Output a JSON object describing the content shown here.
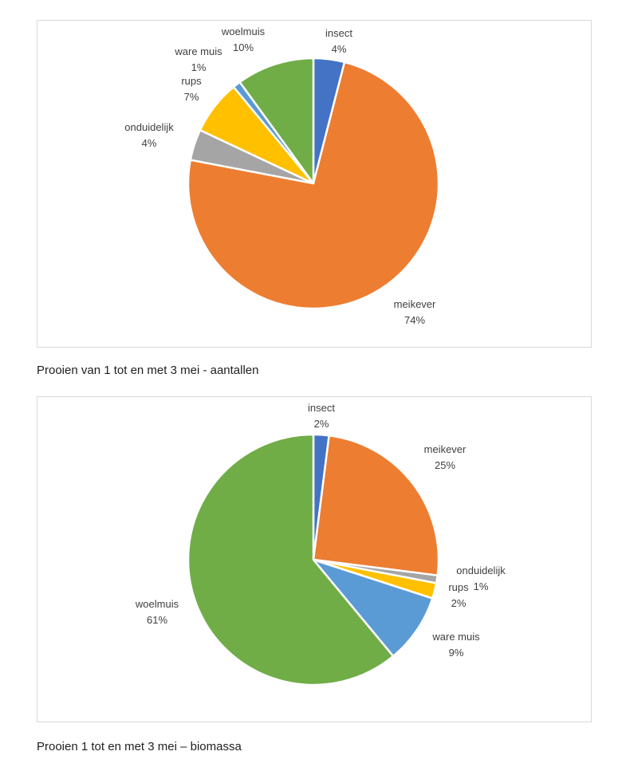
{
  "chart_data": [
    {
      "type": "pie",
      "title": "",
      "caption": "Prooien van 1 tot en met 3 mei - aantallen",
      "slices": [
        {
          "label": "insect",
          "value": 4,
          "value_label": "4%",
          "color": "#4472C4"
        },
        {
          "label": "meikever",
          "value": 74,
          "value_label": "74%",
          "color": "#ED7D31"
        },
        {
          "label": "onduidelijk",
          "value": 4,
          "value_label": "4%",
          "color": "#A5A5A5"
        },
        {
          "label": "rups",
          "value": 7,
          "value_label": "7%",
          "color": "#FFC000"
        },
        {
          "label": "ware muis",
          "value": 1,
          "value_label": "1%",
          "color": "#5B9BD5"
        },
        {
          "label": "woelmuis",
          "value": 10,
          "value_label": "10%",
          "color": "#70AD47"
        }
      ]
    },
    {
      "type": "pie",
      "title": "",
      "caption": "Prooien 1 tot en met 3 mei – biomassa",
      "slices": [
        {
          "label": "insect",
          "value": 2,
          "value_label": "2%",
          "color": "#4472C4"
        },
        {
          "label": "meikever",
          "value": 25,
          "value_label": "25%",
          "color": "#ED7D31"
        },
        {
          "label": "onduidelijk",
          "value": 1,
          "value_label": "1%",
          "color": "#A5A5A5"
        },
        {
          "label": "rups",
          "value": 2,
          "value_label": "2%",
          "color": "#FFC000"
        },
        {
          "label": "ware muis",
          "value": 9,
          "value_label": "9%",
          "color": "#5B9BD5"
        },
        {
          "label": "woelmuis",
          "value": 61,
          "value_label": "61%",
          "color": "#70AD47"
        }
      ]
    }
  ]
}
